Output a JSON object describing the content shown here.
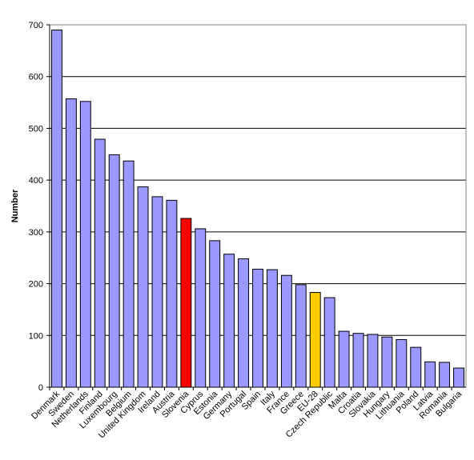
{
  "chart_data": {
    "type": "bar",
    "title": "",
    "xlabel": "",
    "ylabel": "Number",
    "ylim": [
      0,
      700
    ],
    "yticks": [
      0,
      100,
      200,
      300,
      400,
      500,
      600,
      700
    ],
    "grid": true,
    "categories": [
      "Denmark",
      "Sweden",
      "Netherlands",
      "Finland",
      "Luxembourg",
      "Belgium",
      "United Kingdom",
      "Ireland",
      "Austria",
      "Slovenia",
      "Cyprus",
      "Estonia",
      "Germany",
      "Portugal",
      "Spain",
      "Italy",
      "France",
      "Greece",
      "EU-28",
      "Czech Republic",
      "Malta",
      "Croatia",
      "Slovakia",
      "Hungary",
      "Lithuania",
      "Poland",
      "Latvia",
      "Romania",
      "Bulgaria"
    ],
    "values": [
      690,
      557,
      552,
      479,
      449,
      437,
      387,
      368,
      361,
      326,
      306,
      283,
      257,
      248,
      228,
      227,
      216,
      198,
      183,
      173,
      108,
      104,
      102,
      97,
      92,
      77,
      49,
      48,
      37
    ],
    "bar_colors": {
      "default": "#9999ff",
      "Slovenia": "#ff0000",
      "EU-28": "#ffcc00"
    }
  }
}
